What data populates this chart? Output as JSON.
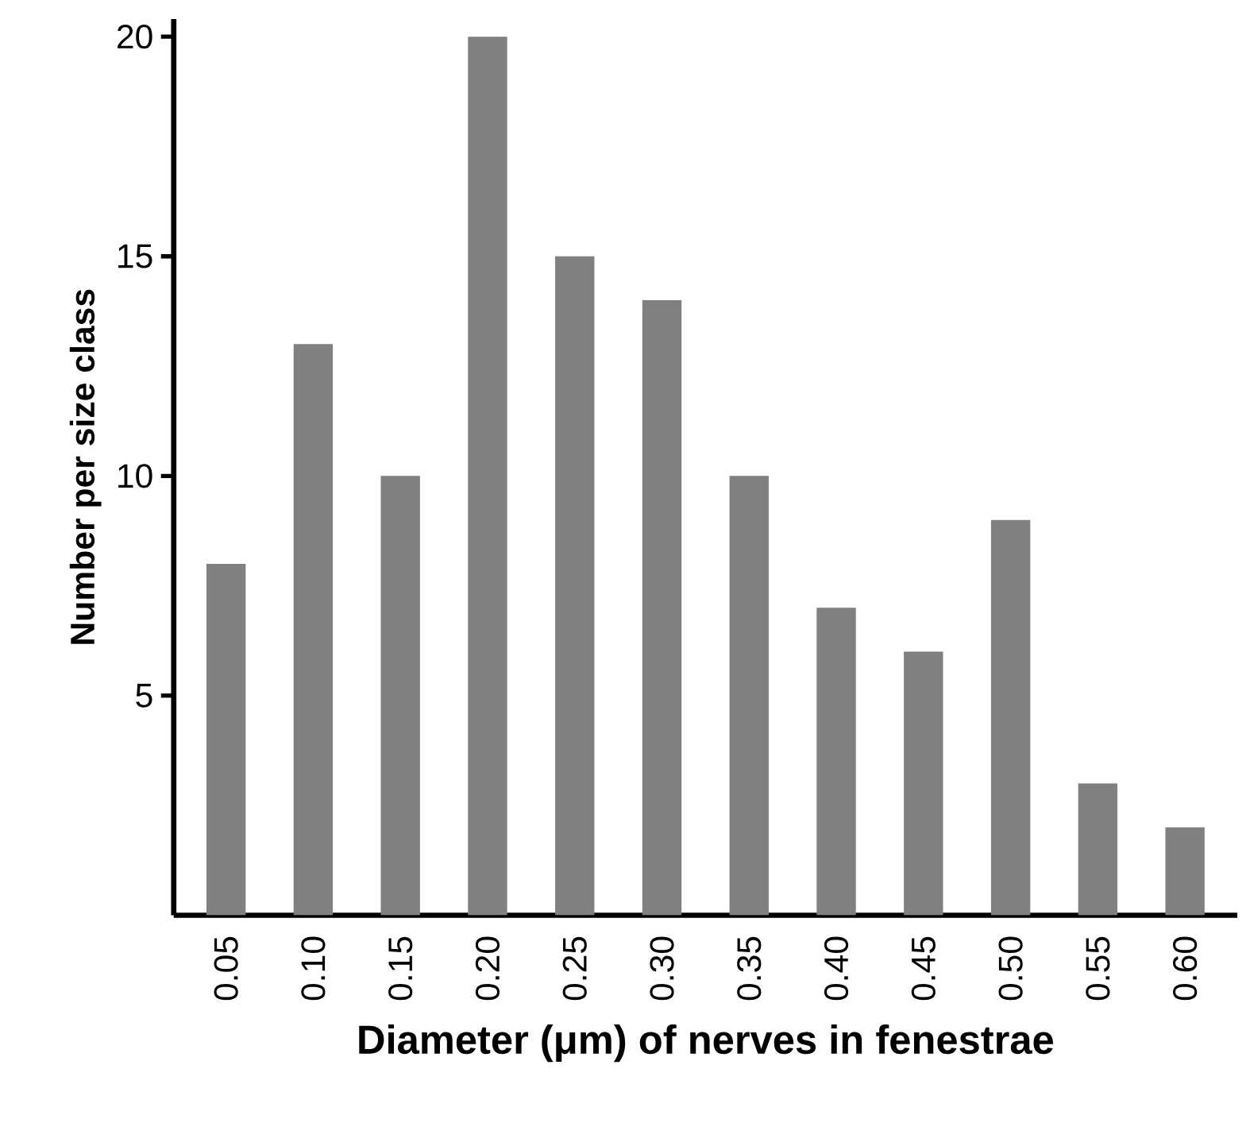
{
  "chart_data": {
    "type": "bar",
    "xlabel": "Diameter (μm) of nerves in fenestrae",
    "ylabel": "Number per size class",
    "categories": [
      "0.05",
      "0.10",
      "0.15",
      "0.20",
      "0.25",
      "0.30",
      "0.35",
      "0.40",
      "0.45",
      "0.50",
      "0.55",
      "0.60"
    ],
    "values": [
      8,
      13,
      10,
      20,
      15,
      14,
      10,
      7,
      6,
      9,
      3,
      2
    ],
    "color": "#808080",
    "ylim": [
      0,
      20.4
    ],
    "yticks": [
      5,
      10,
      15,
      20
    ]
  }
}
